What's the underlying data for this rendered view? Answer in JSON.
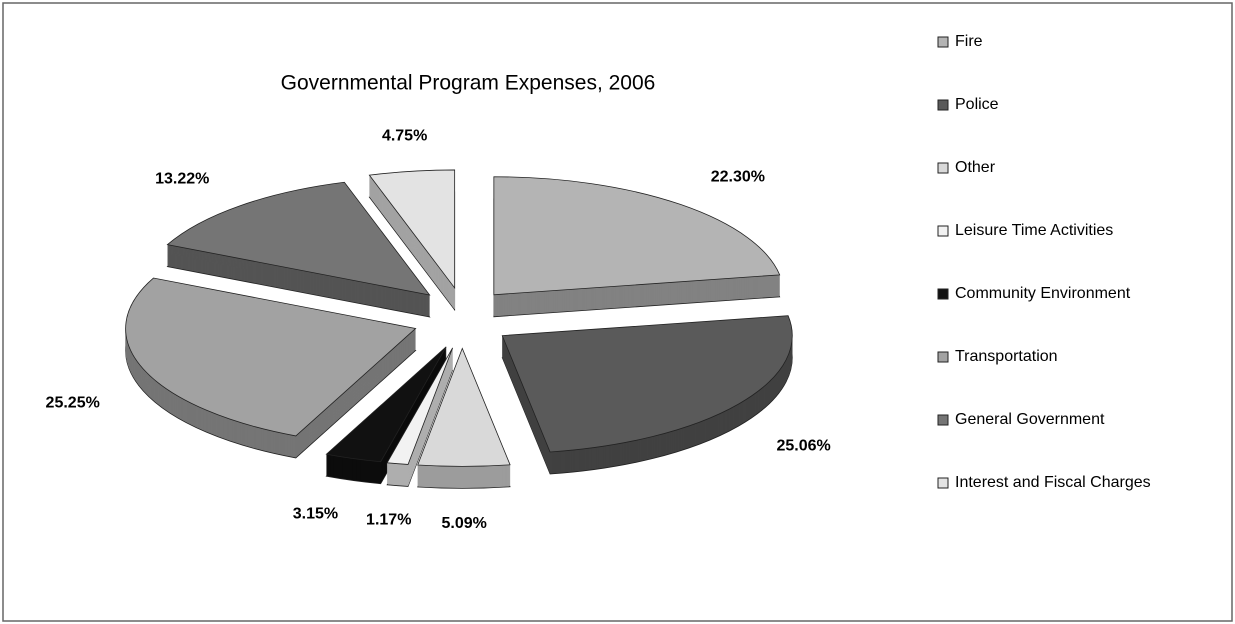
{
  "chart_data": {
    "type": "pie",
    "title": "Governmental Program Expenses, 2006",
    "categories": [
      "Fire",
      "Police",
      "Other",
      "Leisure Time Activities",
      "Community Environment",
      "Transportation",
      "General Government",
      "Interest and Fiscal Charges"
    ],
    "values": [
      22.3,
      25.06,
      5.09,
      1.17,
      3.15,
      25.25,
      13.22,
      4.75
    ],
    "value_labels": [
      "22.30%",
      "25.06%",
      "5.09%",
      "1.17%",
      "3.15%",
      "25.25%",
      "13.22%",
      "4.75%"
    ],
    "colors": [
      "#b4b4b4",
      "#5a5a5a",
      "#d9d9d9",
      "#f2f2f2",
      "#111111",
      "#a2a2a2",
      "#757575",
      "#e3e3e3"
    ],
    "legend": "right"
  }
}
